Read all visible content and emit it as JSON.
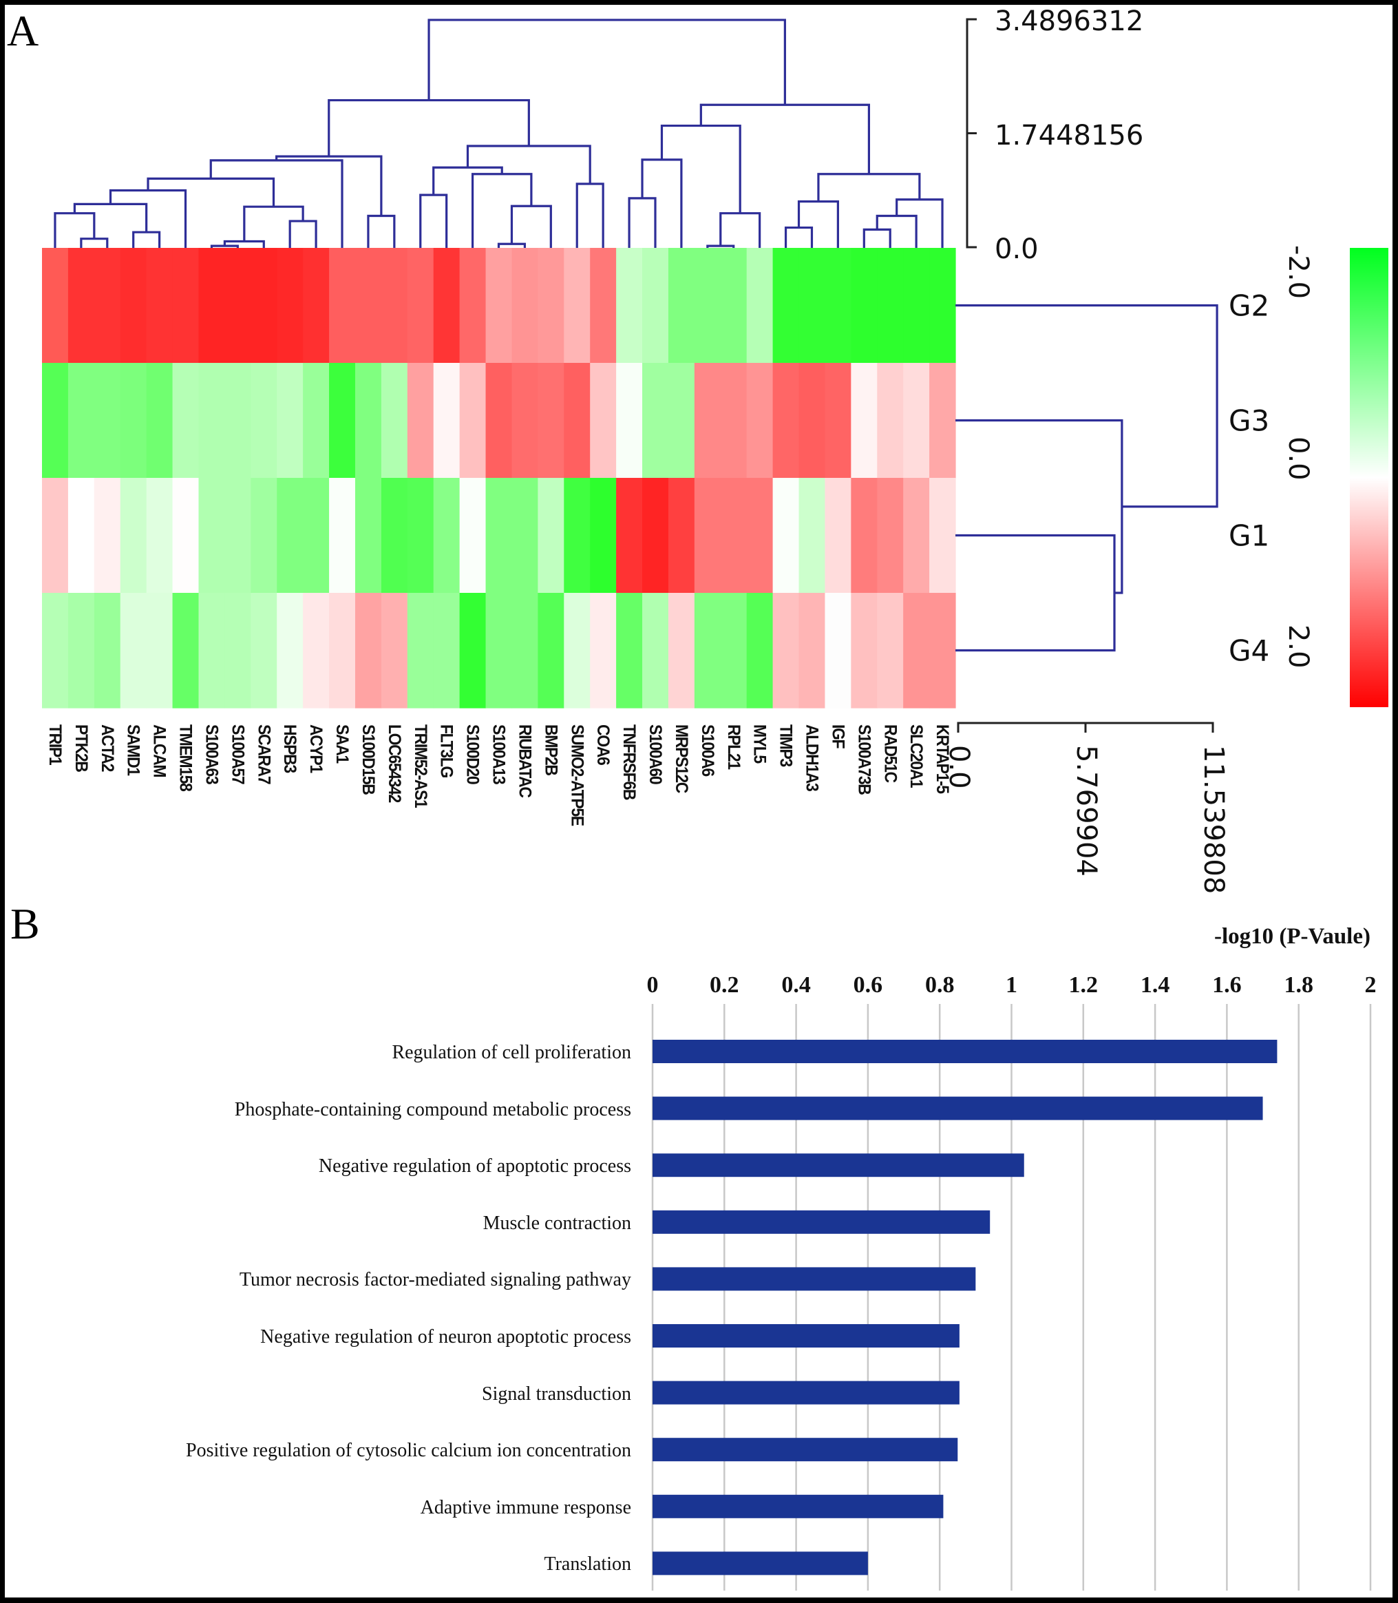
{
  "panel_a_label": "A",
  "panel_b_label": "B",
  "chart_data": [
    {
      "type": "heatmap",
      "title": "",
      "columns": [
        "TRIP1",
        "PTK2B",
        "ACTA2",
        "SAMD1",
        "ALCAM",
        "TMEM158",
        "S100A63",
        "S100A57",
        "SCARA7",
        "HSPB3",
        "ACYP1",
        "SAA1",
        "S100D15B",
        "LOC654342",
        "TRIM52-AS1",
        "FLT3LG",
        "S100D20",
        "S100A13",
        "RIUBATAC",
        "BMP2B",
        "SUMO2-ATP5E",
        "COA6",
        "TNFRSF6B",
        "S100A60",
        "MRPS12C",
        "S100A6",
        "RPL21",
        "MYL5",
        "TIMP3",
        "ALDH1A3",
        "IGF",
        "S100A73B",
        "RAD51C",
        "SLC20A1",
        "KRTAP1-5"
      ],
      "rows": [
        "G2",
        "G3",
        "G1",
        "G4"
      ],
      "cell_colors": [
        [
          "#ff5a55",
          "#ff3333",
          "#ff3333",
          "#ff2d2d",
          "#ff3333",
          "#ff3333",
          "#ff2424",
          "#ff2424",
          "#ff2424",
          "#ff2828",
          "#ff3030",
          "#ff5e5e",
          "#ff5e5e",
          "#ff5e5e",
          "#ff6464",
          "#ff3535",
          "#ff6868",
          "#ffa0a0",
          "#ff9494",
          "#ff9999",
          "#ffb5b5",
          "#ff7878",
          "#c8ffc8",
          "#b8ffb8",
          "#80ff80",
          "#80ff80",
          "#80ff80",
          "#b5ffb5",
          "#33ff33",
          "#33ff33",
          "#33ff33",
          "#2dff2d",
          "#2dff2d",
          "#2dff2d",
          "#2dff2d"
        ],
        [
          "#55ff55",
          "#80ff80",
          "#80ff80",
          "#7cff7c",
          "#70ff70",
          "#b5ffb5",
          "#b0ffb0",
          "#b0ffb0",
          "#b5ffb5",
          "#c0ffc0",
          "#99ff99",
          "#3cff3c",
          "#80ff80",
          "#b0ffb0",
          "#ffa0a0",
          "#fff5f5",
          "#ffc0c0",
          "#ff6060",
          "#ff6c6c",
          "#ff7070",
          "#ff6060",
          "#ffc5c5",
          "#f8fff8",
          "#a0ffa0",
          "#a0ffa0",
          "#ff8888",
          "#ff8888",
          "#ff9494",
          "#ff6666",
          "#ff5e5e",
          "#ff6464",
          "#fff3f3",
          "#ffd0d0",
          "#ffdcdc",
          "#ffa8a8"
        ],
        [
          "#ffc8c8",
          "#ffffff",
          "#fff0f0",
          "#ccffcc",
          "#e0ffe0",
          "#fffdfd",
          "#b0ffb0",
          "#b0ffb0",
          "#a0ffa0",
          "#80ff80",
          "#80ff80",
          "#fafffa",
          "#80ff80",
          "#50ff50",
          "#55ff55",
          "#88ff88",
          "#fafffa",
          "#80ff80",
          "#80ff80",
          "#c0ffc0",
          "#40ff40",
          "#2dff2d",
          "#ff3333",
          "#ff2424",
          "#ff4040",
          "#ff7878",
          "#ff7878",
          "#ff7878",
          "#fafffa",
          "#ccffcc",
          "#ffdcdc",
          "#ff7c7c",
          "#ff8888",
          "#ffabab",
          "#ffe0e0"
        ],
        [
          "#b5ffb5",
          "#a8ffa8",
          "#99ff99",
          "#dcffdc",
          "#dcffdc",
          "#66ff66",
          "#b5ffb5",
          "#b5ffb5",
          "#bfffbf",
          "#ecffec",
          "#ffe8e8",
          "#ffdcdc",
          "#ffa3a3",
          "#ffb0b0",
          "#99ff99",
          "#99ff99",
          "#33ff33",
          "#80ff80",
          "#80ff80",
          "#55ff55",
          "#dcffdc",
          "#ffecec",
          "#66ff66",
          "#b0ffb0",
          "#ffd4d4",
          "#80ff80",
          "#80ff80",
          "#55ff55",
          "#ffc0c0",
          "#ffb5b5",
          "#fdfdfd",
          "#ffc0c0",
          "#ffc8c8",
          "#ff9494",
          "#ff9494"
        ]
      ],
      "color_scale": {
        "min": -2.0,
        "mid": 0.0,
        "max": 2.0,
        "min_color": "#00ff1e",
        "mid_color": "#ffffff",
        "max_color": "#ff0000",
        "tick_labels": [
          "-2.0",
          "0.0",
          "2.0"
        ]
      },
      "column_dendrogram": {
        "scale_ticks": [
          {
            "value": 3.4896312,
            "label": "3.4896312"
          },
          {
            "value": 1.7448156,
            "label": "1.7448156"
          },
          {
            "value": 0.0,
            "label": "0.0"
          }
        ],
        "max": 3.4896312,
        "line_color": "#2e2e98",
        "merges": [
          {
            "a": 1,
            "b": 2,
            "h": 0.13
          },
          {
            "a": 0,
            "b": "m0",
            "h": 0.52
          },
          {
            "a": 3,
            "b": 4,
            "h": 0.23
          },
          {
            "a": "m1",
            "b": "m2",
            "h": 0.66
          },
          {
            "a": "m3",
            "b": 5,
            "h": 0.87
          },
          {
            "a": 6,
            "b": 7,
            "h": 0.02
          },
          {
            "a": "m5",
            "b": 8,
            "h": 0.09
          },
          {
            "a": 9,
            "b": 10,
            "h": 0.4
          },
          {
            "a": "m6",
            "b": "m7",
            "h": 0.62
          },
          {
            "a": "m4",
            "b": "m8",
            "h": 1.05
          },
          {
            "a": "m9",
            "b": 11,
            "h": 1.33
          },
          {
            "a": 12,
            "b": 13,
            "h": 0.48
          },
          {
            "a": "m10",
            "b": "m11",
            "h": 1.39
          },
          {
            "a": 14,
            "b": 15,
            "h": 0.8
          },
          {
            "a": 17,
            "b": 18,
            "h": 0.05
          },
          {
            "a": "m14",
            "b": 19,
            "h": 0.63
          },
          {
            "a": 16,
            "b": "m15",
            "h": 1.12
          },
          {
            "a": "m13",
            "b": "m16",
            "h": 1.22
          },
          {
            "a": 20,
            "b": 21,
            "h": 0.97
          },
          {
            "a": "m17",
            "b": "m18",
            "h": 1.55
          },
          {
            "a": "m12",
            "b": "m19",
            "h": 2.25
          },
          {
            "a": 22,
            "b": 23,
            "h": 0.75
          },
          {
            "a": "m21",
            "b": 24,
            "h": 1.34
          },
          {
            "a": 25,
            "b": 26,
            "h": 0.02
          },
          {
            "a": "m23",
            "b": 27,
            "h": 0.52
          },
          {
            "a": "m22",
            "b": "m24",
            "h": 1.86
          },
          {
            "a": 28,
            "b": 29,
            "h": 0.3
          },
          {
            "a": "m26",
            "b": 30,
            "h": 0.7
          },
          {
            "a": 31,
            "b": 32,
            "h": 0.27
          },
          {
            "a": "m28",
            "b": 33,
            "h": 0.48
          },
          {
            "a": "m29",
            "b": 34,
            "h": 0.73
          },
          {
            "a": "m27",
            "b": "m30",
            "h": 1.12
          },
          {
            "a": "m25",
            "b": "m31",
            "h": 2.18
          },
          {
            "a": "m20",
            "b": "m32",
            "h": 3.48
          }
        ]
      },
      "row_dendrogram": {
        "scale_ticks": [
          {
            "value": 0.0,
            "label": "0.0"
          },
          {
            "value": 5.769904,
            "label": "5.769904"
          },
          {
            "value": 11.539808,
            "label": "11.539808"
          }
        ],
        "max": 11.539808,
        "merges": [
          {
            "a": 2,
            "b": 3,
            "h": 7.08
          },
          {
            "a": 1,
            "b": "m0",
            "h": 7.42
          },
          {
            "a": 0,
            "b": "m1",
            "h": 11.73
          }
        ]
      }
    },
    {
      "type": "bar",
      "orientation": "horizontal",
      "title": "",
      "xlabel": "-log10 (P-Vaule)",
      "ylabel": "",
      "xlim": [
        0,
        2
      ],
      "x_ticks": [
        "0",
        "0.2",
        "0.4",
        "0.6",
        "0.8",
        "1",
        "1.2",
        "1.4",
        "1.6",
        "1.8",
        "2"
      ],
      "grid": "vertical",
      "bar_color": "#1a3593",
      "categories": [
        "Regulation of cell proliferation",
        "Phosphate-containing compound metabolic process",
        "Negative regulation of apoptotic process",
        "Muscle contraction",
        "Tumor necrosis factor-mediated signaling pathway",
        "Negative regulation of neuron apoptotic process",
        "Signal transduction",
        "Positive regulation of cytosolic calcium ion concentration",
        "Adaptive immune response",
        "Translation"
      ],
      "values": [
        1.74,
        1.7,
        1.035,
        0.94,
        0.9,
        0.855,
        0.855,
        0.85,
        0.81,
        0.6
      ]
    }
  ]
}
